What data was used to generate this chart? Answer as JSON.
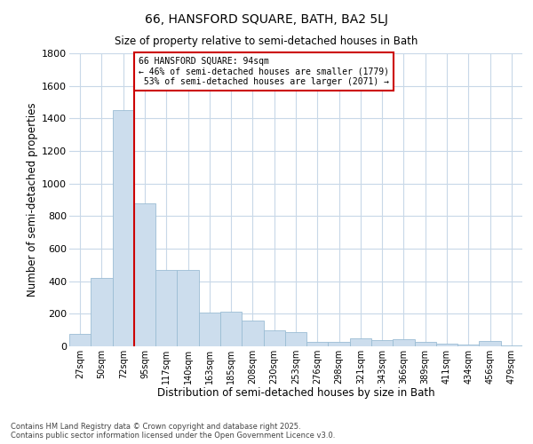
{
  "title": "66, HANSFORD SQUARE, BATH, BA2 5LJ",
  "subtitle": "Size of property relative to semi-detached houses in Bath",
  "xlabel": "Distribution of semi-detached houses by size in Bath",
  "ylabel": "Number of semi-detached properties",
  "categories": [
    "27sqm",
    "50sqm",
    "72sqm",
    "95sqm",
    "117sqm",
    "140sqm",
    "163sqm",
    "185sqm",
    "208sqm",
    "230sqm",
    "253sqm",
    "276sqm",
    "298sqm",
    "321sqm",
    "343sqm",
    "366sqm",
    "389sqm",
    "411sqm",
    "434sqm",
    "456sqm",
    "479sqm"
  ],
  "values": [
    75,
    420,
    1450,
    880,
    470,
    470,
    210,
    215,
    160,
    100,
    85,
    30,
    28,
    50,
    40,
    45,
    25,
    15,
    12,
    35,
    8
  ],
  "bar_color": "#ccdded",
  "bar_edge_color": "#9bbdd4",
  "property_label": "66 HANSFORD SQUARE: 94sqm",
  "pct_smaller": 46,
  "n_smaller": 1779,
  "pct_larger": 53,
  "n_larger": 2071,
  "vline_x_index": 3,
  "vline_color": "#cc0000",
  "annotation_box_color": "#cc0000",
  "background_color": "#ffffff",
  "grid_color": "#c8d8e8",
  "ylim": [
    0,
    1800
  ],
  "yticks": [
    0,
    200,
    400,
    600,
    800,
    1000,
    1200,
    1400,
    1600,
    1800
  ],
  "footer_line1": "Contains HM Land Registry data © Crown copyright and database right 2025.",
  "footer_line2": "Contains public sector information licensed under the Open Government Licence v3.0."
}
